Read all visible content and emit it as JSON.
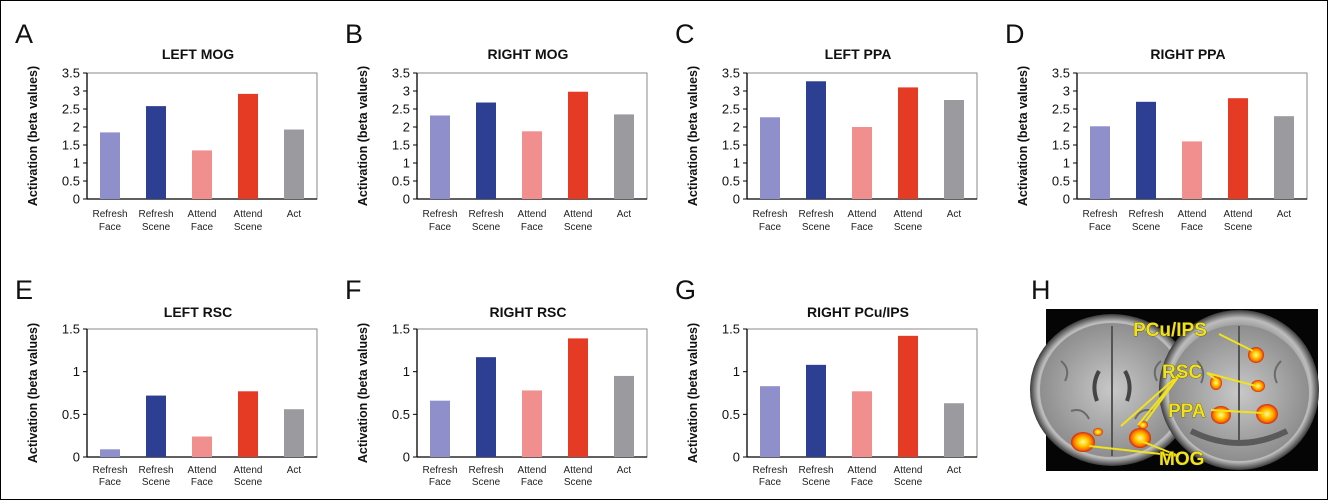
{
  "chart_data": [
    {
      "panel": "A",
      "type": "bar",
      "title": "LEFT MOG",
      "ylabel": "Activation (beta values)",
      "ylim": [
        0,
        3.5
      ],
      "yticks": [
        "0",
        "0.5",
        "1",
        "1.5",
        "2",
        "2.5",
        "3",
        "3.5"
      ],
      "categories": [
        "Refresh Face",
        "Refresh Scene",
        "Attend Face",
        "Attend Scene",
        "Act"
      ],
      "values": [
        1.85,
        2.58,
        1.35,
        2.92,
        1.93
      ]
    },
    {
      "panel": "B",
      "type": "bar",
      "title": "RIGHT MOG",
      "ylabel": "Activation (beta values)",
      "ylim": [
        0,
        3.5
      ],
      "yticks": [
        "0",
        "0.5",
        "1",
        "1.5",
        "2",
        "2.5",
        "3",
        "3.5"
      ],
      "categories": [
        "Refresh Face",
        "Refresh Scene",
        "Attend Face",
        "Attend Scene",
        "Act"
      ],
      "values": [
        2.32,
        2.68,
        1.88,
        2.98,
        2.35
      ]
    },
    {
      "panel": "C",
      "type": "bar",
      "title": "LEFT PPA",
      "ylabel": "Activation (beta values)",
      "ylim": [
        0,
        3.5
      ],
      "yticks": [
        "0",
        "0.5",
        "1",
        "1.5",
        "2",
        "2.5",
        "3",
        "3.5"
      ],
      "categories": [
        "Refresh Face",
        "Refresh Scene",
        "Attend Face",
        "Attend Scene",
        "Act"
      ],
      "values": [
        2.27,
        3.27,
        2.0,
        3.1,
        2.75
      ]
    },
    {
      "panel": "D",
      "type": "bar",
      "title": "RIGHT PPA",
      "ylabel": "Activation (beta values)",
      "ylim": [
        0,
        3.5
      ],
      "yticks": [
        "0",
        "0.5",
        "1",
        "1.5",
        "2",
        "2.5",
        "3",
        "3.5"
      ],
      "categories": [
        "Refresh Face",
        "Refresh Scene",
        "Attend Face",
        "Attend Scene",
        "Act"
      ],
      "values": [
        2.02,
        2.7,
        1.6,
        2.8,
        2.3
      ]
    },
    {
      "panel": "E",
      "type": "bar",
      "title": "LEFT RSC",
      "ylabel": "Activation (beta values)",
      "ylim": [
        0,
        1.5
      ],
      "yticks": [
        "0",
        "0.5",
        "1",
        "1.5"
      ],
      "categories": [
        "Refresh Face",
        "Refresh Scene",
        "Attend Face",
        "Attend Scene",
        "Act"
      ],
      "values": [
        0.09,
        0.72,
        0.24,
        0.77,
        0.56
      ]
    },
    {
      "panel": "F",
      "type": "bar",
      "title": "RIGHT RSC",
      "ylabel": "Activation (beta values)",
      "ylim": [
        0,
        1.5
      ],
      "yticks": [
        "0",
        "0.5",
        "1",
        "1.5"
      ],
      "categories": [
        "Refresh Face",
        "Refresh Scene",
        "Attend Face",
        "Attend Scene",
        "Act"
      ],
      "values": [
        0.66,
        1.17,
        0.78,
        1.39,
        0.95
      ]
    },
    {
      "panel": "G",
      "type": "bar",
      "title": "RIGHT PCu/IPS",
      "ylabel": "Activation (beta values)",
      "ylim": [
        0,
        1.5
      ],
      "yticks": [
        "0",
        "0.5",
        "1",
        "1.5"
      ],
      "categories": [
        "Refresh Face",
        "Refresh Scene",
        "Attend Face",
        "Attend Scene",
        "Act"
      ],
      "values": [
        0.83,
        1.08,
        0.77,
        1.42,
        0.63
      ]
    }
  ],
  "bar_colors": [
    "#8e8fcb",
    "#2d3f93",
    "#f08f8e",
    "#e53a24",
    "#9b9b9f"
  ],
  "brain": {
    "panel": "H",
    "labels": {
      "pcu": "PCu/IPS",
      "rsc": "RSC",
      "ppa": "PPA",
      "mog": "MOG"
    }
  }
}
